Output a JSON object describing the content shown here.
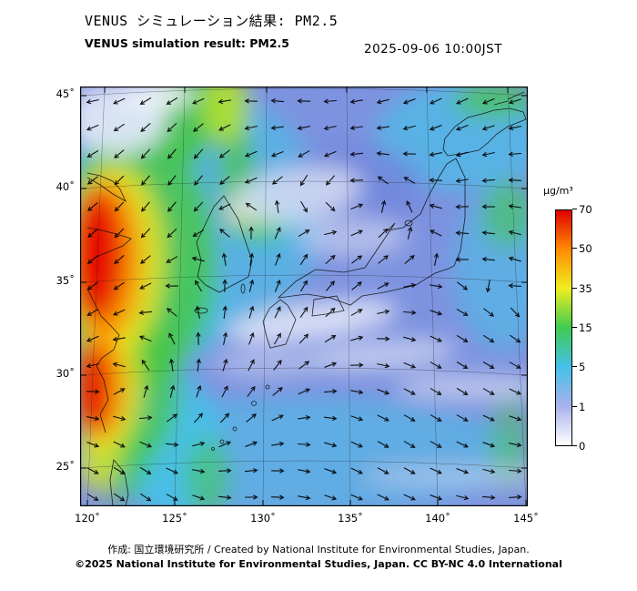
{
  "header": {
    "title_jp": "VENUS シミュレーション結果: PM2.5",
    "title_en": "VENUS simulation result: PM2.5",
    "timestamp": "2025-09-06 10:00JST"
  },
  "map": {
    "lat_ticks": [
      "45˚",
      "40˚",
      "35˚",
      "30˚",
      "25˚"
    ],
    "lon_ticks": [
      "120˚",
      "125˚",
      "130˚",
      "135˚",
      "140˚",
      "145˚"
    ]
  },
  "colorbar": {
    "unit": "µg/m³",
    "tick_labels": [
      "70",
      "50",
      "35",
      "15",
      "5",
      "1",
      "0"
    ],
    "stops": [
      {
        "value": 0,
        "color": "#ffffff"
      },
      {
        "value": 1,
        "color": "#a9b2ea"
      },
      {
        "value": 5,
        "color": "#45c0ea"
      },
      {
        "value": 15,
        "color": "#3ecb52"
      },
      {
        "value": 35,
        "color": "#efee1f"
      },
      {
        "value": 50,
        "color": "#ff8c00"
      },
      {
        "value": 70,
        "color": "#e00000"
      }
    ]
  },
  "footer": {
    "credit": "作成: 国立環境研究所 / Created by National Institute for Environmental Studies, Japan.",
    "copyright": "©2025 National Institute for Environmental Studies, Japan. CC BY-NC 4.0 International"
  }
}
